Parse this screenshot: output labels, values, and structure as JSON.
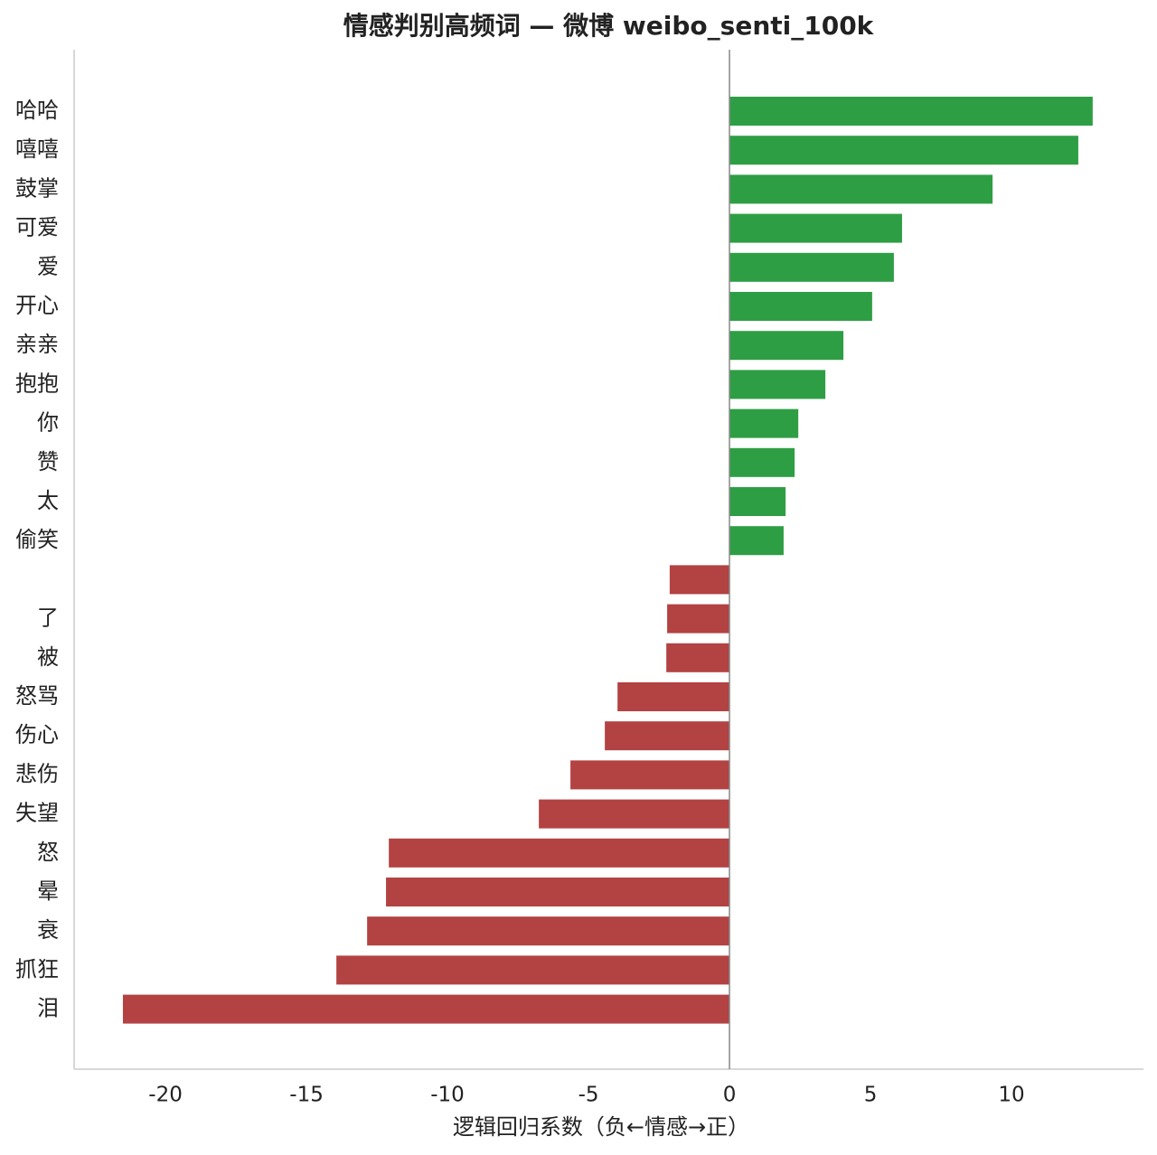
{
  "chart_data": {
    "type": "barh",
    "title": "情感判别高频词 — 微博 weibo_senti_100k",
    "xlabel": "逻辑回归系数（负←情感→正）",
    "categories": [
      "哈哈",
      "嘻嘻",
      "鼓掌",
      "可爱",
      "爱",
      "开心",
      "亲亲",
      "抱抱",
      "你",
      "赞",
      "太",
      "偷笑",
      null,
      "了",
      "被",
      "怒骂",
      "伤心",
      "悲伤",
      "失望",
      "怒",
      "晕",
      "衰",
      "抓狂",
      "泪"
    ],
    "values": [
      12.88,
      12.37,
      9.33,
      6.12,
      5.83,
      5.06,
      4.04,
      3.4,
      2.44,
      2.31,
      1.99,
      1.92,
      -2.12,
      -2.21,
      -2.24,
      -3.97,
      -4.42,
      -5.64,
      -6.76,
      -12.08,
      -12.18,
      -12.85,
      -13.94,
      -21.51
    ],
    "color_positive": "#2e9e44",
    "color_negative": "#b34242",
    "xlim": [
      -23.24,
      14.68
    ],
    "xticks": [
      -20,
      -15,
      -10,
      -5,
      0,
      5,
      10
    ],
    "vline": 0,
    "grid": false
  }
}
